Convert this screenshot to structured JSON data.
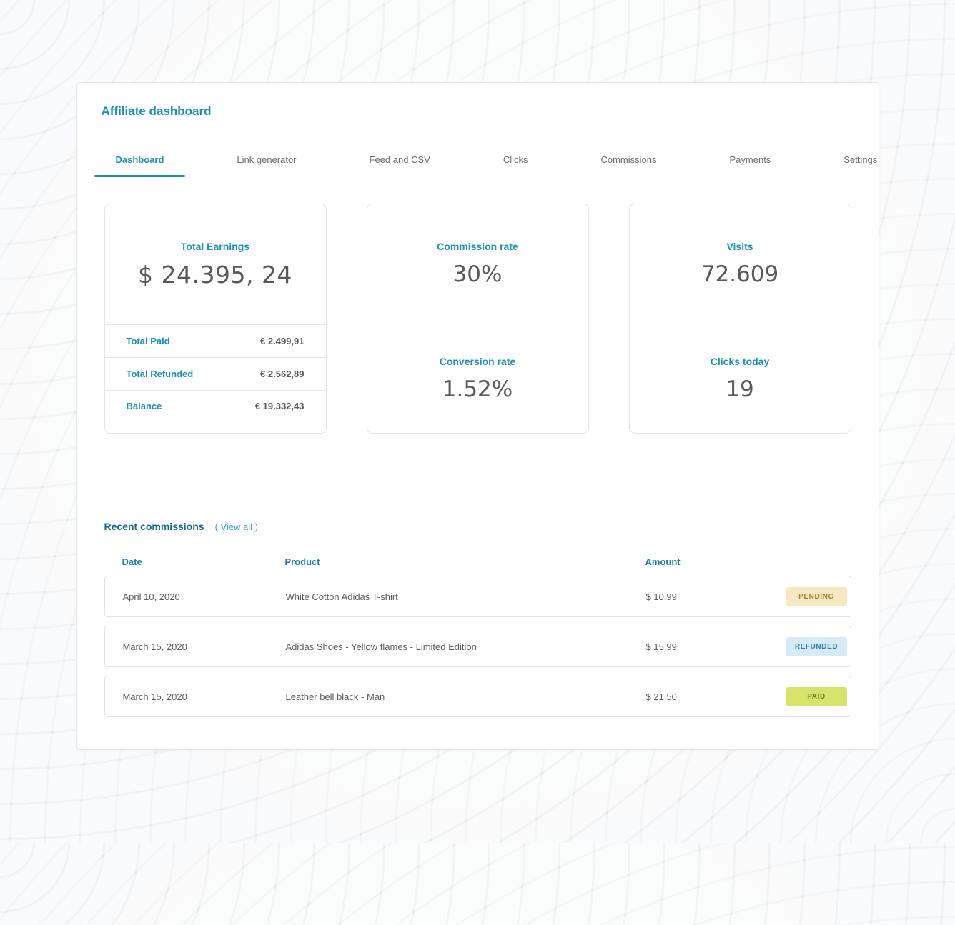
{
  "page": {
    "title": "Affiliate dashboard"
  },
  "tabs": {
    "items": [
      {
        "label": "Dashboard",
        "active": true
      },
      {
        "label": "Link generator",
        "active": false
      },
      {
        "label": "Feed and CSV",
        "active": false
      },
      {
        "label": "Clicks",
        "active": false
      },
      {
        "label": "Commissions",
        "active": false
      },
      {
        "label": "Payments",
        "active": false
      },
      {
        "label": "Settings",
        "active": false
      }
    ]
  },
  "cards": {
    "earnings": {
      "label": "Total Earnings",
      "value": "$ 24.395, 24",
      "rows": [
        {
          "label": "Total Paid",
          "value": "€ 2.499,91"
        },
        {
          "label": "Total Refunded",
          "value": "€ 2.562,89"
        },
        {
          "label": "Balance",
          "value": "€ 19.332,43"
        }
      ]
    },
    "rates": {
      "top": {
        "label": "Commission rate",
        "value": "30%"
      },
      "bottom": {
        "label": "Conversion rate",
        "value": "1.52%"
      }
    },
    "traffic": {
      "top": {
        "label": "Visits",
        "value": "72.609"
      },
      "bottom": {
        "label": "Clicks today",
        "value": "19"
      }
    }
  },
  "commissions": {
    "title": "Recent commissions",
    "view_all": "( View all )",
    "headers": {
      "date": "Date",
      "product": "Product",
      "amount": "Amount"
    },
    "rows": [
      {
        "date": "April 10, 2020",
        "product": "White Cotton Adidas T-shirt",
        "amount": "$ 10.99",
        "status": "PENDING"
      },
      {
        "date": "March 15, 2020",
        "product": "Adidas Shoes - Yellow flames - Limited Edition",
        "amount": "$ 15.99",
        "status": "REFUNDED"
      },
      {
        "date": "March 15, 2020",
        "product": "Leather bell black - Man",
        "amount": "$ 21.50",
        "status": "PAID"
      }
    ]
  },
  "colors": {
    "accent_teal": "#1a90b2",
    "heading_teal_dark": "#14688f",
    "link_blue": "#3f9fd4",
    "value_gray": "#58595b",
    "pending_bg": "#f8e8c0",
    "pending_text": "#9c8034",
    "refunded_bg": "#d6eaf8",
    "refunded_text": "#2d7fa9",
    "paid_bg": "#d7e36a",
    "paid_text": "#6c7d1e"
  }
}
